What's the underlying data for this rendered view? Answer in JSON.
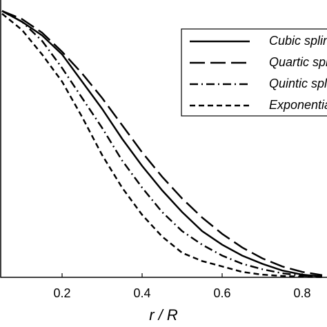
{
  "chart_data": {
    "type": "line",
    "x_label": "r / R",
    "x": [
      0.05,
      0.1,
      0.15,
      0.2,
      0.25,
      0.3,
      0.35,
      0.4,
      0.45,
      0.5,
      0.55,
      0.6,
      0.65,
      0.7,
      0.75,
      0.8,
      0.85
    ],
    "series": [
      {
        "name": "Cubic spline",
        "color": "#000000",
        "dash": "solid",
        "values": [
          0.98,
          0.94,
          0.89,
          0.82,
          0.72,
          0.62,
          0.51,
          0.41,
          0.32,
          0.24,
          0.17,
          0.12,
          0.08,
          0.05,
          0.025,
          0.01,
          0.003
        ]
      },
      {
        "name": "Quartic spline",
        "color": "#000000",
        "dash": "long-dash",
        "values": [
          0.98,
          0.95,
          0.9,
          0.83,
          0.75,
          0.66,
          0.56,
          0.46,
          0.37,
          0.29,
          0.22,
          0.16,
          0.11,
          0.07,
          0.04,
          0.02,
          0.008
        ]
      },
      {
        "name": "Quintic spline",
        "color": "#000000",
        "dash": "dash-dot",
        "values": [
          0.98,
          0.94,
          0.87,
          0.77,
          0.66,
          0.55,
          0.43,
          0.33,
          0.24,
          0.17,
          0.12,
          0.08,
          0.05,
          0.03,
          0.015,
          0.006,
          0.002
        ]
      },
      {
        "name": "Exponential",
        "color": "#000000",
        "dash": "dash",
        "values": [
          0.97,
          0.91,
          0.82,
          0.72,
          0.59,
          0.45,
          0.33,
          0.23,
          0.15,
          0.09,
          0.06,
          0.04,
          0.02,
          0.01,
          0.005,
          0.002,
          0.001
        ]
      }
    ],
    "xlim": [
      0,
      1
    ],
    "ylim": [
      0,
      1
    ],
    "xticks": [
      0.2,
      0.4,
      0.6,
      0.8
    ],
    "legend": "upper-right"
  }
}
